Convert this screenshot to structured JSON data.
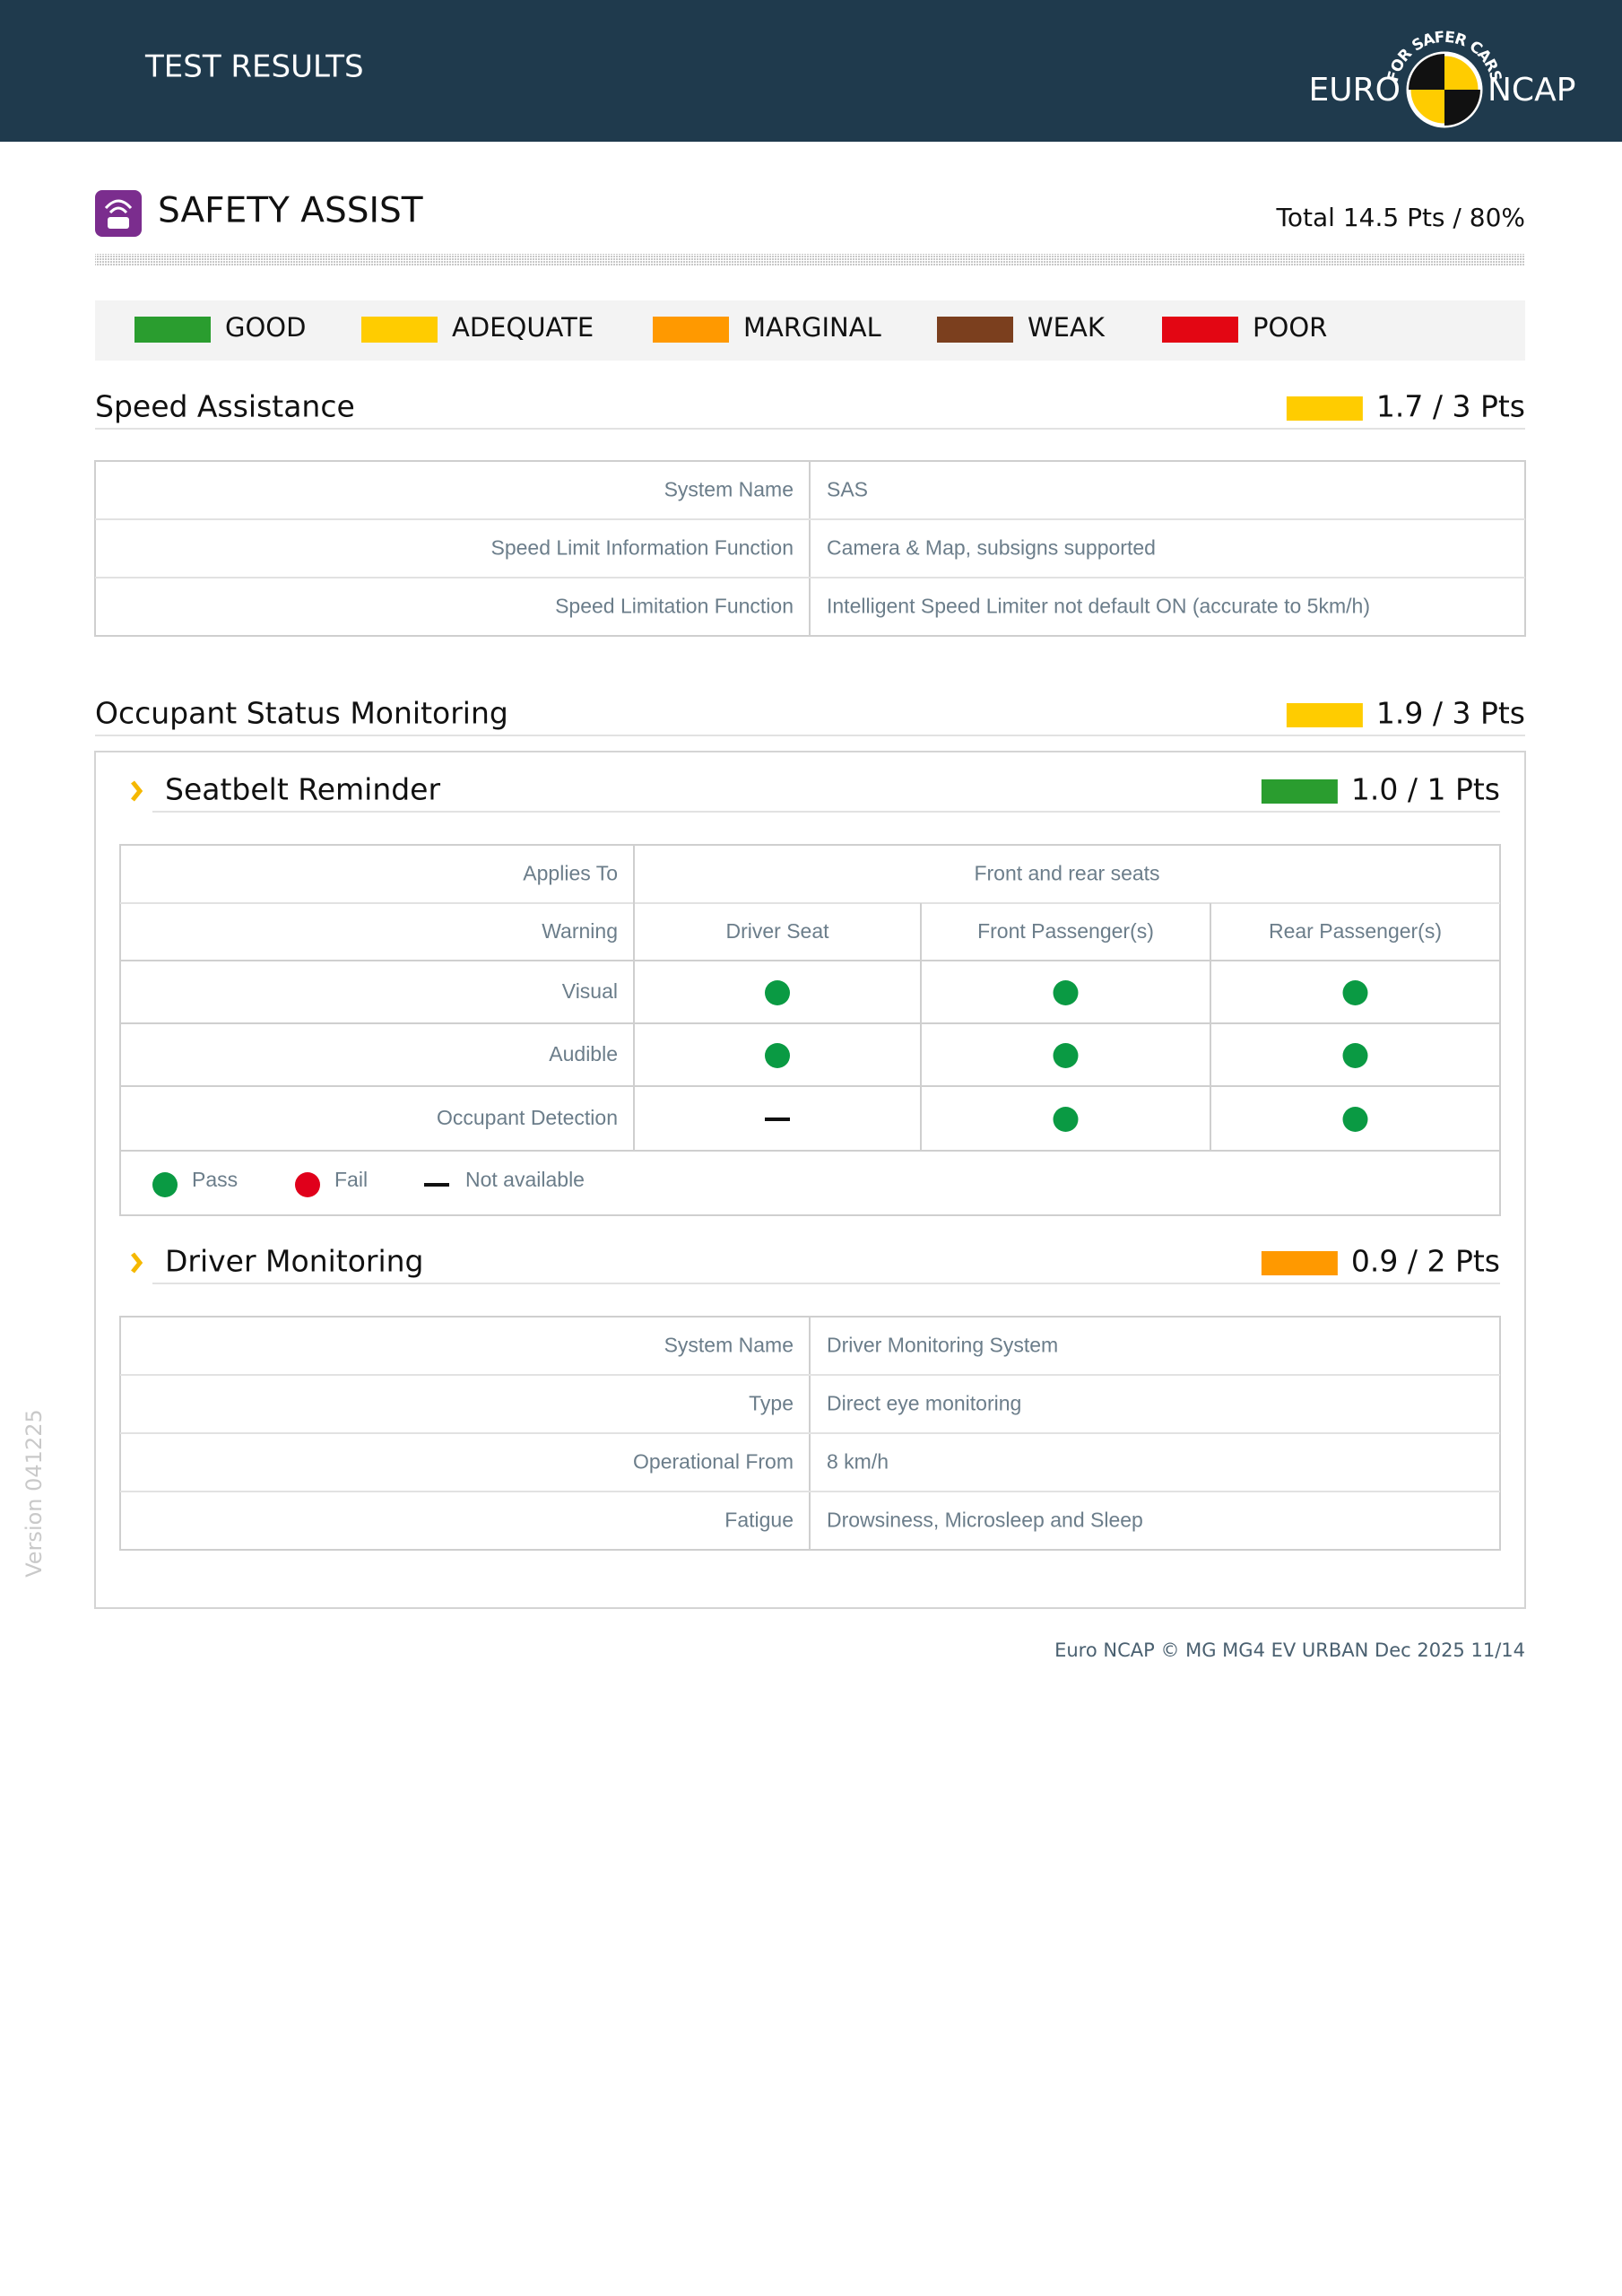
{
  "header": {
    "title": "TEST RESULTS",
    "logo": {
      "left": "EURO",
      "right": "NCAP",
      "arc": "FOR SAFER CARS"
    }
  },
  "section": {
    "title": "SAFETY ASSIST",
    "total": "Total 14.5 Pts / 80%"
  },
  "legend": [
    {
      "label": "GOOD",
      "color": "#2a9d2f"
    },
    {
      "label": "ADEQUATE",
      "color": "#ffcc00"
    },
    {
      "label": "MARGINAL",
      "color": "#ff9900"
    },
    {
      "label": "WEAK",
      "color": "#7b3f1e"
    },
    {
      "label": "POOR",
      "color": "#e30613"
    }
  ],
  "speed_assistance": {
    "title": "Speed Assistance",
    "score": "1.7 / 3 Pts",
    "color": "#ffcc00",
    "rows": [
      [
        "System Name",
        "SAS"
      ],
      [
        "Speed Limit Information Function",
        "Camera & Map, subsigns supported"
      ],
      [
        "Speed Limitation Function",
        "Intelligent Speed Limiter not default ON (accurate to 5km/h)"
      ]
    ]
  },
  "occupant_monitoring": {
    "title": "Occupant Status Monitoring",
    "score": "1.9 / 3 Pts",
    "color": "#ffcc00",
    "seatbelt": {
      "title": "Seatbelt Reminder",
      "score": "1.0 / 1 Pts",
      "color": "#2a9d2f",
      "applies_to": [
        "Applies To",
        "Front and rear seats"
      ],
      "warning": [
        "Warning",
        "Driver Seat",
        "Front Passenger(s)",
        "Rear Passenger(s)"
      ],
      "rows": [
        {
          "label": "Visual",
          "status": [
            "pass",
            "pass",
            "pass"
          ]
        },
        {
          "label": "Audible",
          "status": [
            "pass",
            "pass",
            "pass"
          ]
        },
        {
          "label": "Occupant Detection",
          "status": [
            "na",
            "pass",
            "pass"
          ]
        }
      ],
      "key": [
        {
          "status": "pass",
          "label": "Pass"
        },
        {
          "status": "fail",
          "label": "Fail"
        },
        {
          "status": "na",
          "label": "Not available"
        }
      ]
    },
    "driver_monitoring": {
      "title": "Driver Monitoring",
      "score": "0.9 / 2 Pts",
      "color": "#ff9900",
      "rows": [
        [
          "System Name",
          "Driver Monitoring System"
        ],
        [
          "Type",
          "Direct eye monitoring"
        ],
        [
          "Operational From",
          "8 km/h"
        ],
        [
          "Fatigue",
          "Drowsiness, Microsleep and Sleep"
        ]
      ]
    }
  },
  "footer": "Euro NCAP © MG MG4 EV URBAN Dec 2025 11/14",
  "version": "Version 041225"
}
